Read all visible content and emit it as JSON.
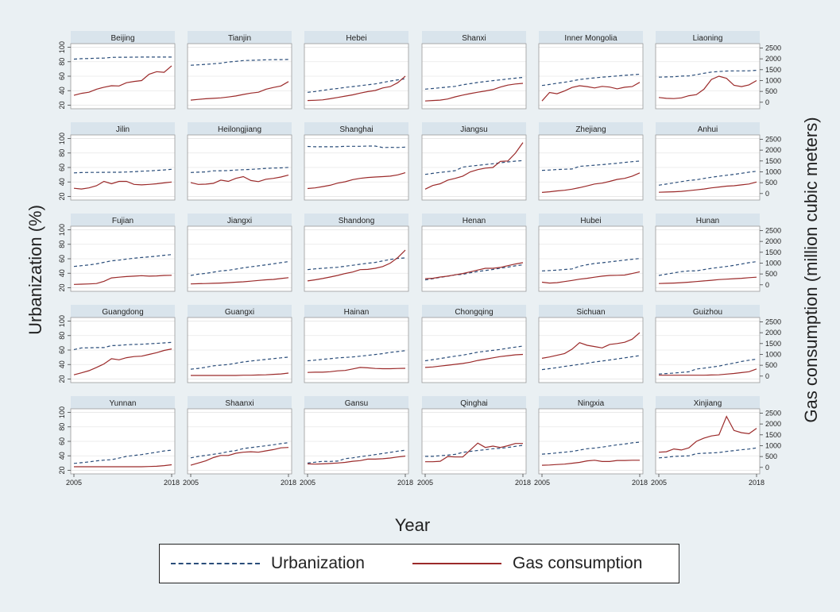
{
  "chart_data": {
    "type": "line",
    "layout": "small-multiples",
    "panel_rows": 5,
    "panel_cols": 6,
    "ylabel": "Urbanization (%)",
    "y2label": "Gas consumption (million cubic meters)",
    "xlabel": "Year",
    "x_start": 2005,
    "x_end": 2018,
    "x_tick_labels": [
      "2005",
      "2018"
    ],
    "ylim": [
      15,
      105
    ],
    "y_ticks": [
      20,
      40,
      60,
      80,
      100
    ],
    "y2lim": [
      -300,
      2700
    ],
    "y2_ticks": [
      0,
      500,
      1000,
      1500,
      2000,
      2500
    ],
    "grid": true,
    "legend_position": "bottom",
    "series_names": [
      "Urbanization",
      "Gas consumption"
    ],
    "colors": {
      "urbanization": "#2a4d7a",
      "gas": "#9b2a2a",
      "panel_header": "#d9e4ec"
    },
    "panels": [
      {
        "province": "Beijing",
        "urbanization": [
          83.6,
          84.3,
          84.5,
          84.9,
          85.0,
          86.0,
          86.2,
          86.2,
          86.3,
          86.4,
          86.5,
          86.5,
          86.5,
          86.5
        ],
        "gas": [
          320,
          410,
          460,
          600,
          690,
          760,
          750,
          900,
          960,
          1000,
          1290,
          1410,
          1380,
          1680
        ]
      },
      {
        "province": "Tianjin",
        "urbanization": [
          75.1,
          75.7,
          76.3,
          77.2,
          78.0,
          79.6,
          80.5,
          81.6,
          82.0,
          82.3,
          82.6,
          82.9,
          82.9,
          83.2
        ],
        "gas": [
          100,
          130,
          160,
          180,
          200,
          240,
          290,
          360,
          420,
          460,
          600,
          680,
          750,
          950
        ]
      },
      {
        "province": "Hebei",
        "urbanization": [
          37.7,
          38.8,
          40.3,
          41.9,
          43.0,
          44.5,
          45.6,
          46.8,
          48.1,
          49.3,
          51.3,
          53.3,
          55.0,
          56.4
        ],
        "gas": [
          80,
          90,
          110,
          160,
          220,
          280,
          340,
          420,
          490,
          540,
          660,
          720,
          900,
          1200
        ]
      },
      {
        "province": "Shanxi",
        "urbanization": [
          42.1,
          43.0,
          44.0,
          45.1,
          46.0,
          48.1,
          49.7,
          51.3,
          52.6,
          53.8,
          55.0,
          56.2,
          57.3,
          58.4
        ],
        "gas": [
          60,
          80,
          100,
          150,
          250,
          330,
          400,
          460,
          520,
          580,
          700,
          790,
          840,
          870
        ]
      },
      {
        "province": "Inner Mongolia",
        "urbanization": [
          47.2,
          48.6,
          50.2,
          51.7,
          53.4,
          55.5,
          56.6,
          57.7,
          58.7,
          59.5,
          60.3,
          61.2,
          62.0,
          62.7
        ],
        "gas": [
          60,
          450,
          390,
          520,
          680,
          760,
          720,
          660,
          730,
          700,
          620,
          690,
          720,
          920
        ]
      },
      {
        "province": "Liaoning",
        "urbanization": [
          58.7,
          59.0,
          59.2,
          60.1,
          60.4,
          62.1,
          64.1,
          65.7,
          66.5,
          67.1,
          67.4,
          67.4,
          67.5,
          68.1
        ],
        "gas": [
          220,
          180,
          170,
          200,
          300,
          350,
          600,
          1050,
          1200,
          1100,
          780,
          720,
          800,
          1000
        ]
      },
      {
        "province": "Jilin",
        "urbanization": [
          52.5,
          53.0,
          53.2,
          53.2,
          53.3,
          53.4,
          53.4,
          53.7,
          54.2,
          54.8,
          55.3,
          55.9,
          56.6,
          57.5
        ],
        "gas": [
          240,
          210,
          260,
          360,
          560,
          450,
          560,
          560,
          420,
          400,
          420,
          450,
          490,
          530
        ]
      },
      {
        "province": "Heilongjiang",
        "urbanization": [
          53.1,
          53.5,
          53.9,
          55.4,
          55.5,
          55.7,
          56.5,
          56.9,
          57.4,
          58.0,
          58.8,
          59.2,
          59.4,
          60.1
        ],
        "gas": [
          500,
          420,
          430,
          470,
          620,
          560,
          700,
          780,
          600,
          550,
          660,
          700,
          760,
          850
        ]
      },
      {
        "province": "Shanghai",
        "urbanization": [
          89.1,
          88.7,
          88.7,
          88.6,
          88.6,
          89.3,
          89.3,
          89.3,
          89.6,
          89.6,
          87.6,
          87.9,
          87.7,
          88.1
        ],
        "gas": [
          230,
          260,
          320,
          380,
          480,
          540,
          640,
          700,
          740,
          760,
          780,
          800,
          860,
          960
        ]
      },
      {
        "province": "Jiangsu",
        "urbanization": [
          50.5,
          51.9,
          53.2,
          54.3,
          55.6,
          60.6,
          61.9,
          63.0,
          64.1,
          65.2,
          66.5,
          67.7,
          68.8,
          69.6
        ],
        "gas": [
          200,
          370,
          450,
          620,
          700,
          800,
          1000,
          1100,
          1170,
          1200,
          1480,
          1500,
          1860,
          2350
        ]
      },
      {
        "province": "Zhejiang",
        "urbanization": [
          56.0,
          56.5,
          57.2,
          57.6,
          57.9,
          61.6,
          62.3,
          63.2,
          64.0,
          64.9,
          65.8,
          67.0,
          68.0,
          68.9
        ],
        "gas": [
          50,
          80,
          120,
          150,
          200,
          270,
          350,
          440,
          480,
          560,
          650,
          700,
          800,
          950
        ]
      },
      {
        "province": "Anhui",
        "urbanization": [
          35.5,
          37.1,
          38.7,
          40.5,
          42.1,
          43.0,
          44.8,
          46.5,
          47.9,
          49.2,
          50.5,
          52.0,
          53.5,
          54.7
        ],
        "gas": [
          60,
          70,
          80,
          100,
          130,
          170,
          210,
          260,
          300,
          340,
          360,
          400,
          440,
          530
        ]
      },
      {
        "province": "Fujian",
        "urbanization": [
          49.4,
          50.4,
          51.4,
          53.0,
          55.1,
          57.1,
          58.1,
          59.6,
          60.8,
          61.8,
          62.6,
          63.6,
          64.8,
          65.8
        ],
        "gas": [
          20,
          30,
          40,
          60,
          160,
          320,
          350,
          380,
          400,
          420,
          400,
          410,
          430,
          440
        ]
      },
      {
        "province": "Jiangxi",
        "urbanization": [
          37.0,
          38.7,
          39.8,
          41.4,
          43.2,
          44.1,
          45.7,
          47.5,
          48.9,
          50.2,
          51.6,
          53.1,
          54.6,
          56.0
        ],
        "gas": [
          40,
          50,
          60,
          70,
          80,
          100,
          120,
          140,
          170,
          200,
          230,
          250,
          290,
          330
        ]
      },
      {
        "province": "Shandong",
        "urbanization": [
          45.0,
          46.1,
          46.8,
          47.6,
          48.3,
          49.7,
          51.0,
          52.4,
          53.8,
          55.0,
          57.0,
          59.0,
          60.6,
          61.2
        ],
        "gas": [
          180,
          230,
          290,
          360,
          430,
          520,
          590,
          700,
          710,
          760,
          840,
          1000,
          1250,
          1600
        ]
      },
      {
        "province": "Henan",
        "urbanization": [
          30.7,
          32.5,
          34.3,
          36.0,
          37.7,
          38.5,
          40.6,
          42.4,
          43.8,
          45.2,
          46.9,
          48.5,
          50.2,
          51.7
        ],
        "gas": [
          280,
          300,
          360,
          400,
          460,
          520,
          600,
          680,
          760,
          760,
          800,
          880,
          960,
          1020
        ]
      },
      {
        "province": "Hubei",
        "urbanization": [
          43.2,
          43.8,
          44.3,
          45.2,
          46.0,
          49.7,
          51.8,
          53.5,
          54.5,
          55.7,
          56.9,
          58.1,
          59.3,
          60.3
        ],
        "gas": [
          120,
          80,
          100,
          150,
          200,
          260,
          300,
          350,
          400,
          430,
          440,
          450,
          520,
          600
        ]
      },
      {
        "province": "Hunan",
        "urbanization": [
          37.0,
          38.7,
          40.5,
          42.2,
          43.2,
          43.3,
          45.1,
          46.7,
          48.0,
          49.3,
          50.9,
          52.8,
          54.6,
          56.0
        ],
        "gas": [
          60,
          70,
          80,
          100,
          120,
          150,
          180,
          210,
          240,
          260,
          280,
          300,
          330,
          350
        ]
      },
      {
        "province": "Guangdong",
        "urbanization": [
          60.7,
          63.0,
          63.1,
          63.4,
          63.4,
          66.2,
          66.5,
          67.4,
          67.8,
          68.0,
          68.7,
          69.2,
          69.9,
          70.7
        ],
        "gas": [
          60,
          150,
          250,
          400,
          560,
          800,
          750,
          850,
          900,
          920,
          1000,
          1080,
          1180,
          1250
        ]
      },
      {
        "province": "Guangxi",
        "urbanization": [
          33.6,
          34.6,
          36.2,
          38.2,
          39.2,
          40.0,
          41.8,
          43.5,
          44.8,
          46.0,
          47.1,
          48.1,
          49.2,
          50.2
        ],
        "gas": [
          30,
          30,
          30,
          30,
          30,
          30,
          30,
          40,
          40,
          50,
          60,
          80,
          100,
          140
        ]
      },
      {
        "province": "Hainan",
        "urbanization": [
          45.2,
          46.1,
          47.2,
          48.0,
          49.1,
          49.8,
          50.5,
          51.6,
          52.7,
          53.8,
          55.1,
          56.8,
          57.9,
          59.1
        ],
        "gas": [
          170,
          180,
          180,
          200,
          240,
          260,
          330,
          400,
          380,
          350,
          340,
          340,
          350,
          360
        ]
      },
      {
        "province": "Chongqing",
        "urbanization": [
          45.2,
          46.7,
          48.3,
          50.0,
          51.6,
          53.0,
          55.0,
          57.0,
          58.3,
          59.6,
          60.9,
          62.6,
          64.1,
          65.5
        ],
        "gas": [
          400,
          420,
          460,
          500,
          540,
          580,
          640,
          720,
          780,
          840,
          900,
          940,
          980,
          1000
        ]
      },
      {
        "province": "Sichuan",
        "urbanization": [
          33.0,
          34.3,
          35.6,
          37.4,
          38.7,
          40.2,
          41.8,
          43.5,
          44.9,
          46.3,
          47.7,
          49.2,
          50.8,
          52.3
        ],
        "gas": [
          820,
          880,
          960,
          1040,
          1240,
          1540,
          1420,
          1360,
          1300,
          1460,
          1500,
          1560,
          1700,
          2000
        ]
      },
      {
        "province": "Guizhou",
        "urbanization": [
          26.9,
          27.5,
          28.2,
          29.1,
          29.9,
          33.8,
          35.0,
          36.4,
          37.8,
          40.0,
          42.0,
          44.2,
          46.0,
          47.5
        ],
        "gas": [
          40,
          40,
          40,
          40,
          40,
          40,
          40,
          50,
          60,
          90,
          120,
          160,
          200,
          330
        ]
      },
      {
        "province": "Yunnan",
        "urbanization": [
          29.5,
          30.5,
          31.6,
          33.0,
          34.0,
          34.7,
          36.8,
          39.3,
          40.5,
          41.7,
          43.3,
          45.0,
          46.7,
          47.8
        ],
        "gas": [
          30,
          30,
          30,
          30,
          30,
          30,
          30,
          30,
          30,
          30,
          40,
          50,
          80,
          120
        ]
      },
      {
        "province": "Shaanxi",
        "urbanization": [
          37.2,
          39.1,
          40.6,
          42.1,
          43.5,
          45.8,
          47.3,
          50.0,
          51.3,
          52.6,
          53.9,
          55.3,
          56.8,
          58.1
        ],
        "gas": [
          100,
          200,
          300,
          450,
          550,
          550,
          650,
          700,
          720,
          700,
          760,
          820,
          900,
          920
        ]
      },
      {
        "province": "Gansu",
        "urbanization": [
          30.0,
          31.1,
          32.3,
          32.2,
          32.7,
          36.1,
          37.2,
          38.8,
          40.1,
          41.7,
          43.2,
          44.7,
          46.4,
          47.7
        ],
        "gas": [
          160,
          150,
          160,
          180,
          200,
          230,
          280,
          310,
          380,
          380,
          400,
          430,
          480,
          520
        ]
      },
      {
        "province": "Qinghai",
        "urbanization": [
          39.3,
          39.3,
          40.1,
          40.9,
          42.0,
          44.7,
          46.2,
          47.4,
          48.5,
          49.8,
          50.3,
          51.6,
          53.1,
          54.5
        ],
        "gas": [
          260,
          260,
          280,
          500,
          480,
          480,
          800,
          1120,
          920,
          980,
          920,
          1000,
          1100,
          1100
        ]
      },
      {
        "province": "Ningxia",
        "urbanization": [
          42.3,
          43.0,
          44.0,
          45.0,
          46.1,
          47.9,
          49.8,
          50.7,
          52.0,
          53.6,
          55.2,
          56.3,
          57.9,
          58.9
        ],
        "gas": [
          100,
          110,
          130,
          150,
          190,
          230,
          300,
          330,
          270,
          270,
          320,
          320,
          330,
          330
        ]
      },
      {
        "province": "Xinjiang",
        "urbanization": [
          37.2,
          37.9,
          39.1,
          39.6,
          39.9,
          43.0,
          43.5,
          44.0,
          44.5,
          46.1,
          47.2,
          48.4,
          49.4,
          50.9
        ],
        "gas": [
          700,
          720,
          850,
          800,
          900,
          1200,
          1350,
          1450,
          1500,
          2350,
          1700,
          1600,
          1550,
          1800
        ]
      }
    ]
  },
  "legend": {
    "urbanization_label": "Urbanization",
    "gas_label": "Gas consumption"
  }
}
